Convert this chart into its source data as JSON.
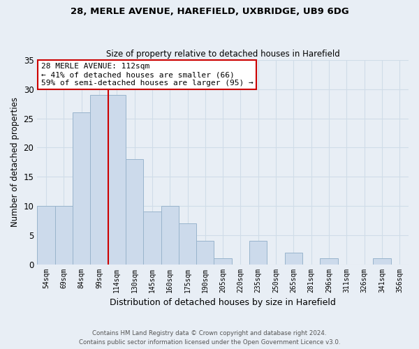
{
  "title1": "28, MERLE AVENUE, HAREFIELD, UXBRIDGE, UB9 6DG",
  "title2": "Size of property relative to detached houses in Harefield",
  "xlabel": "Distribution of detached houses by size in Harefield",
  "ylabel": "Number of detached properties",
  "bin_labels": [
    "54sqm",
    "69sqm",
    "84sqm",
    "99sqm",
    "114sqm",
    "130sqm",
    "145sqm",
    "160sqm",
    "175sqm",
    "190sqm",
    "205sqm",
    "220sqm",
    "235sqm",
    "250sqm",
    "265sqm",
    "281sqm",
    "296sqm",
    "311sqm",
    "326sqm",
    "341sqm",
    "356sqm"
  ],
  "bin_values": [
    10,
    10,
    26,
    29,
    29,
    18,
    9,
    10,
    7,
    4,
    1,
    0,
    4,
    0,
    2,
    0,
    1,
    0,
    0,
    1,
    0
  ],
  "bar_color": "#ccdaeb",
  "bar_edge_color": "#99b4cc",
  "vline_x_index": 4,
  "vline_color": "#cc0000",
  "annotation_line1": "28 MERLE AVENUE: 112sqm",
  "annotation_line2": "← 41% of detached houses are smaller (66)",
  "annotation_line3": "59% of semi-detached houses are larger (95) →",
  "annotation_box_color": "white",
  "annotation_box_edge": "#cc0000",
  "ylim": [
    0,
    35
  ],
  "yticks": [
    0,
    5,
    10,
    15,
    20,
    25,
    30,
    35
  ],
  "footer1": "Contains HM Land Registry data © Crown copyright and database right 2024.",
  "footer2": "Contains public sector information licensed under the Open Government Licence v3.0.",
  "background_color": "#e8eef5",
  "grid_color": "#d0dce8",
  "title1_fontsize": 9.5,
  "title2_fontsize": 8.5
}
